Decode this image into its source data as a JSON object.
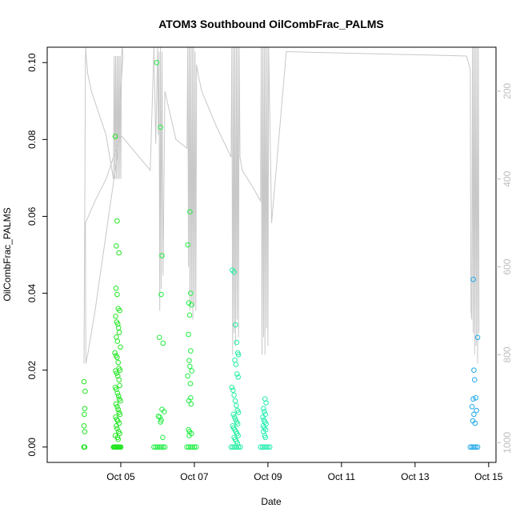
{
  "chart_data": {
    "type": "scatter",
    "title": "ATOM3 Southbound OilCombFrac_PALMS",
    "xlabel": "Date",
    "ylabel": "OilCombFrac_PALMS",
    "xlim_days": [
      3.0,
      15.2
    ],
    "ylim": [
      -0.004,
      0.104
    ],
    "x_ticks": [
      {
        "value": 5,
        "label": "Oct 05"
      },
      {
        "value": 7,
        "label": "Oct 07"
      },
      {
        "value": 9,
        "label": "Oct 09"
      },
      {
        "value": 11,
        "label": "Oct 11"
      },
      {
        "value": 13,
        "label": "Oct 13"
      },
      {
        "value": 15,
        "label": "Oct 15"
      }
    ],
    "y_ticks": [
      0.0,
      0.02,
      0.04,
      0.06,
      0.08,
      0.1
    ],
    "y_tick_labels": [
      "0.00",
      "0.02",
      "0.04",
      "0.06",
      "0.08",
      "0.10"
    ],
    "y2_ticks": [
      {
        "value": 200,
        "label": "200"
      },
      {
        "value": 400,
        "label": "400"
      },
      {
        "value": 600,
        "label": "600"
      },
      {
        "value": 800,
        "label": "800"
      },
      {
        "value": 1000,
        "label": "1000"
      }
    ],
    "y2lim_reversed": [
      1045,
      100
    ],
    "grid": false,
    "colors": {
      "altitude_line": "#c8c8c8",
      "axis": "#000000",
      "right_axis": "#bdbdbd"
    },
    "series": [
      {
        "color": "#22e622",
        "x": [
          4.0,
          4.0,
          4.0,
          4.01,
          4.02,
          4.0,
          4.03,
          4.02,
          4.01,
          4.0,
          4.02,
          4.8,
          4.82,
          4.84,
          4.86,
          4.88,
          4.9,
          4.92,
          4.94,
          4.96,
          4.98,
          5.0,
          4.85,
          4.9,
          4.88,
          4.95,
          4.87,
          4.9,
          4.93,
          4.97,
          4.86,
          4.89,
          4.92,
          4.94,
          4.96,
          4.88,
          4.91,
          4.99,
          4.84,
          4.87,
          4.9,
          4.93,
          4.95,
          4.98,
          4.86,
          4.89,
          4.92,
          4.95,
          4.97,
          4.85,
          4.88,
          4.91,
          4.94,
          4.96,
          4.99,
          4.87,
          4.9,
          4.93,
          4.95,
          4.98,
          4.86,
          4.89,
          4.92,
          4.96,
          4.88,
          4.9,
          4.94,
          4.97,
          4.85,
          4.91,
          4.93
        ],
        "y": [
          0.0,
          0.0,
          0.0,
          0.0,
          0.0,
          0.017,
          0.0145,
          0.01,
          0.0085,
          0.0055,
          0.004,
          0.0,
          0.0,
          0.0,
          0.0,
          0.0,
          0.0,
          0.0,
          0.0,
          0.0,
          0.0,
          0.0,
          0.0808,
          0.0588,
          0.0523,
          0.0505,
          0.0413,
          0.0397,
          0.036,
          0.0355,
          0.034,
          0.0325,
          0.032,
          0.031,
          0.0298,
          0.0286,
          0.0275,
          0.026,
          0.0245,
          0.0238,
          0.0233,
          0.022,
          0.0205,
          0.02,
          0.0198,
          0.0192,
          0.0185,
          0.0175,
          0.016,
          0.0155,
          0.015,
          0.014,
          0.0133,
          0.0125,
          0.012,
          0.0112,
          0.0105,
          0.0098,
          0.009,
          0.0085,
          0.0078,
          0.0072,
          0.0068,
          0.0062,
          0.0055,
          0.0048,
          0.004,
          0.0035,
          0.003,
          0.0025,
          0.002
        ]
      },
      {
        "color": "#22ee44",
        "x": [
          5.9,
          5.95,
          6.0,
          6.05,
          6.1,
          6.15,
          6.2,
          5.98,
          6.08,
          6.12,
          6.1,
          6.05,
          6.15,
          6.12,
          6.18,
          6.02,
          6.06,
          6.1,
          6.08,
          6.14
        ],
        "y": [
          0.0,
          0.0,
          0.0,
          0.0,
          0.0,
          0.0,
          0.0,
          0.1,
          0.0832,
          0.0498,
          0.0397,
          0.0285,
          0.027,
          0.0098,
          0.0092,
          0.008,
          0.0078,
          0.007,
          0.0065,
          0.0025
        ]
      },
      {
        "color": "#22ee44",
        "x": [
          6.8,
          6.85,
          6.9,
          6.95,
          7.0,
          7.05,
          6.82,
          6.88,
          6.9,
          6.85,
          6.92,
          6.87,
          6.84,
          6.9,
          6.86,
          6.88,
          6.93,
          6.82,
          6.89,
          6.9,
          6.85,
          6.91,
          6.84,
          6.87,
          6.92,
          6.86
        ],
        "y": [
          0.0,
          0.0,
          0.0,
          0.0,
          0.0,
          0.0,
          0.0526,
          0.0612,
          0.04,
          0.0375,
          0.037,
          0.0343,
          0.0293,
          0.025,
          0.0225,
          0.021,
          0.0198,
          0.0185,
          0.0165,
          0.0128,
          0.012,
          0.0112,
          0.0045,
          0.004,
          0.0035,
          0.003
        ]
      },
      {
        "color": "#22eea0",
        "x": [
          8.0,
          8.05,
          8.1,
          8.15,
          8.2,
          8.25,
          8.03,
          8.08,
          8.12,
          8.15,
          8.18,
          8.2,
          8.1,
          8.13,
          8.16,
          8.19,
          8.02,
          8.05,
          8.08,
          8.11,
          8.14,
          8.17,
          8.2,
          8.06,
          8.09,
          8.12,
          8.15,
          8.18,
          8.04,
          8.07,
          8.1,
          8.13,
          8.16,
          8.19,
          8.08,
          8.11,
          8.14,
          8.17
        ],
        "y": [
          0.0,
          0.0,
          0.0,
          0.0,
          0.0,
          0.0,
          0.046,
          0.0455,
          0.0318,
          0.0272,
          0.0245,
          0.024,
          0.0226,
          0.0215,
          0.019,
          0.0182,
          0.0155,
          0.0148,
          0.0135,
          0.012,
          0.0108,
          0.0095,
          0.009,
          0.0085,
          0.0078,
          0.0072,
          0.0065,
          0.006,
          0.0055,
          0.005,
          0.0045,
          0.004,
          0.0035,
          0.003,
          0.0025,
          0.002,
          0.0015,
          0.001
        ]
      },
      {
        "color": "#22eeb0",
        "x": [
          8.8,
          8.85,
          8.9,
          8.95,
          9.0,
          9.05,
          8.92,
          8.95,
          8.88,
          8.9,
          8.93,
          8.86,
          8.89,
          8.92,
          8.95,
          8.87,
          8.9,
          8.94,
          8.88,
          8.91,
          8.93
        ],
        "y": [
          0.0,
          0.0,
          0.0,
          0.0,
          0.0,
          0.0,
          0.0125,
          0.0115,
          0.01,
          0.0092,
          0.0085,
          0.0078,
          0.007,
          0.0065,
          0.006,
          0.0055,
          0.005,
          0.0045,
          0.004,
          0.003,
          0.0025
        ]
      },
      {
        "color": "#1ea8e8",
        "x": [
          14.5,
          14.55,
          14.6,
          14.65,
          14.7,
          14.58,
          14.7,
          14.6,
          14.62,
          14.65,
          14.58,
          14.67,
          14.55,
          14.6,
          14.57,
          14.63
        ],
        "y": [
          0.0,
          0.0,
          0.0,
          0.0,
          0.0,
          0.0436,
          0.0285,
          0.02,
          0.0175,
          0.0128,
          0.0125,
          0.0095,
          0.0105,
          0.0085,
          0.0068,
          0.0062
        ]
      }
    ],
    "altitude_path": {
      "x_days": [
        4.0,
        4.02,
        4.04,
        4.05,
        4.06,
        4.1,
        4.2,
        4.6,
        4.8,
        4.82,
        4.84,
        4.86,
        4.88,
        4.9,
        4.92,
        4.94,
        4.96,
        4.98,
        5.0,
        5.02,
        5.04,
        5.06,
        5.0,
        4.9,
        4.3,
        4.1,
        4.05,
        4.04,
        4.3,
        4.6,
        4.8,
        5.0,
        5.8,
        5.9,
        5.95,
        6.0,
        6.02,
        6.04,
        6.06,
        6.08,
        6.1,
        6.12,
        6.15,
        6.2,
        6.5,
        6.8,
        6.82,
        6.84,
        6.86,
        6.88,
        6.9,
        6.92,
        6.94,
        6.96,
        6.98,
        7.0,
        7.02,
        7.04,
        7.06,
        7.1,
        7.2,
        7.6,
        8.0,
        8.02,
        8.04,
        8.06,
        8.08,
        8.1,
        8.12,
        8.14,
        8.16,
        8.18,
        8.2,
        8.22,
        8.24,
        8.3,
        8.6,
        8.8,
        8.82,
        8.84,
        8.86,
        8.88,
        8.9,
        8.92,
        8.94,
        8.96,
        8.98,
        9.0,
        9.02,
        9.1,
        9.5,
        14.4,
        14.5,
        14.52,
        14.54,
        14.56,
        14.58,
        14.6,
        14.62,
        14.64,
        14.66,
        14.68,
        14.7,
        14.72,
        14.74
      ],
      "p_hpa": [
        820,
        500,
        120,
        100,
        120,
        160,
        200,
        300,
        400,
        120,
        400,
        120,
        400,
        120,
        400,
        120,
        400,
        120,
        400,
        120,
        100,
        120,
        200,
        350,
        700,
        800,
        820,
        500,
        450,
        400,
        350,
        300,
        380,
        100,
        320,
        100,
        300,
        110,
        700,
        100,
        650,
        110,
        620,
        200,
        310,
        330,
        100,
        600,
        100,
        700,
        100,
        680,
        100,
        720,
        100,
        690,
        110,
        700,
        140,
        160,
        200,
        280,
        350,
        100,
        800,
        100,
        750,
        100,
        780,
        100,
        720,
        100,
        760,
        100,
        350,
        380,
        420,
        450,
        100,
        800,
        100,
        760,
        100,
        800,
        100,
        740,
        100,
        780,
        100,
        500,
        110,
        120,
        150,
        700,
        720,
        100,
        750,
        100,
        800,
        100,
        780,
        100,
        820,
        100,
        750,
        100,
        600
      ]
    }
  }
}
